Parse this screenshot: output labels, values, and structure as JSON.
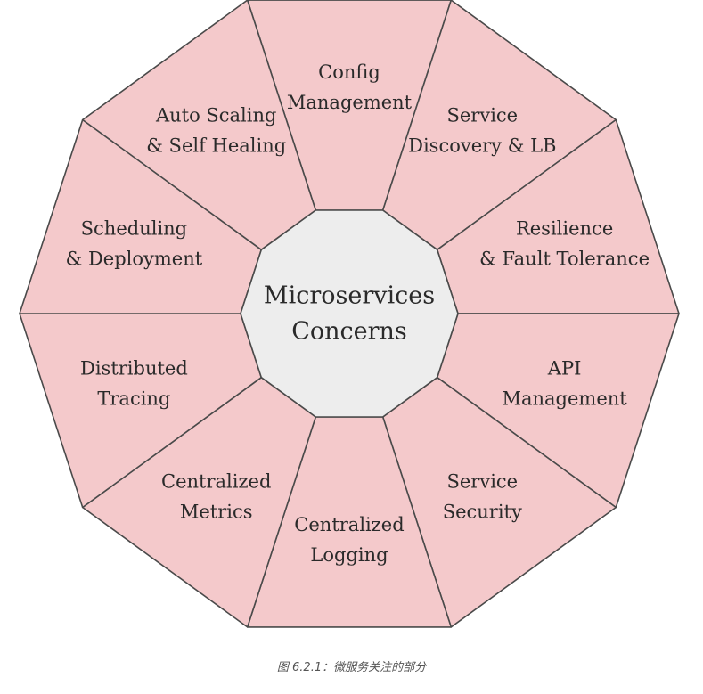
{
  "diagram": {
    "center": {
      "lines": [
        "Microservices",
        "Concerns"
      ]
    },
    "segments": [
      {
        "name": "config-management",
        "lines": [
          "Config",
          "Management"
        ]
      },
      {
        "name": "service-discovery-lb",
        "lines": [
          "Service",
          "Discovery & LB"
        ]
      },
      {
        "name": "resilience-fault-tolerance",
        "lines": [
          "Resilience",
          "& Fault Tolerance"
        ]
      },
      {
        "name": "api-management",
        "lines": [
          "API",
          "Management"
        ]
      },
      {
        "name": "service-security",
        "lines": [
          "Service",
          "Security"
        ]
      },
      {
        "name": "centralized-logging",
        "lines": [
          "Centralized",
          "Logging"
        ]
      },
      {
        "name": "centralized-metrics",
        "lines": [
          "Centralized",
          "Metrics"
        ]
      },
      {
        "name": "distributed-tracing",
        "lines": [
          "Distributed",
          "Tracing"
        ]
      },
      {
        "name": "scheduling-deployment",
        "lines": [
          "Scheduling",
          "& Deployment"
        ]
      },
      {
        "name": "auto-scaling-self-healing",
        "lines": [
          "Auto Scaling",
          "& Self Healing"
        ]
      }
    ],
    "colors": {
      "segment_fill": "#f4c9cb",
      "center_fill": "#ededed",
      "stroke": "#4a4a4a",
      "text": "#2a2a2a"
    }
  },
  "caption": "图 6.2.1：微服务关注的部分"
}
